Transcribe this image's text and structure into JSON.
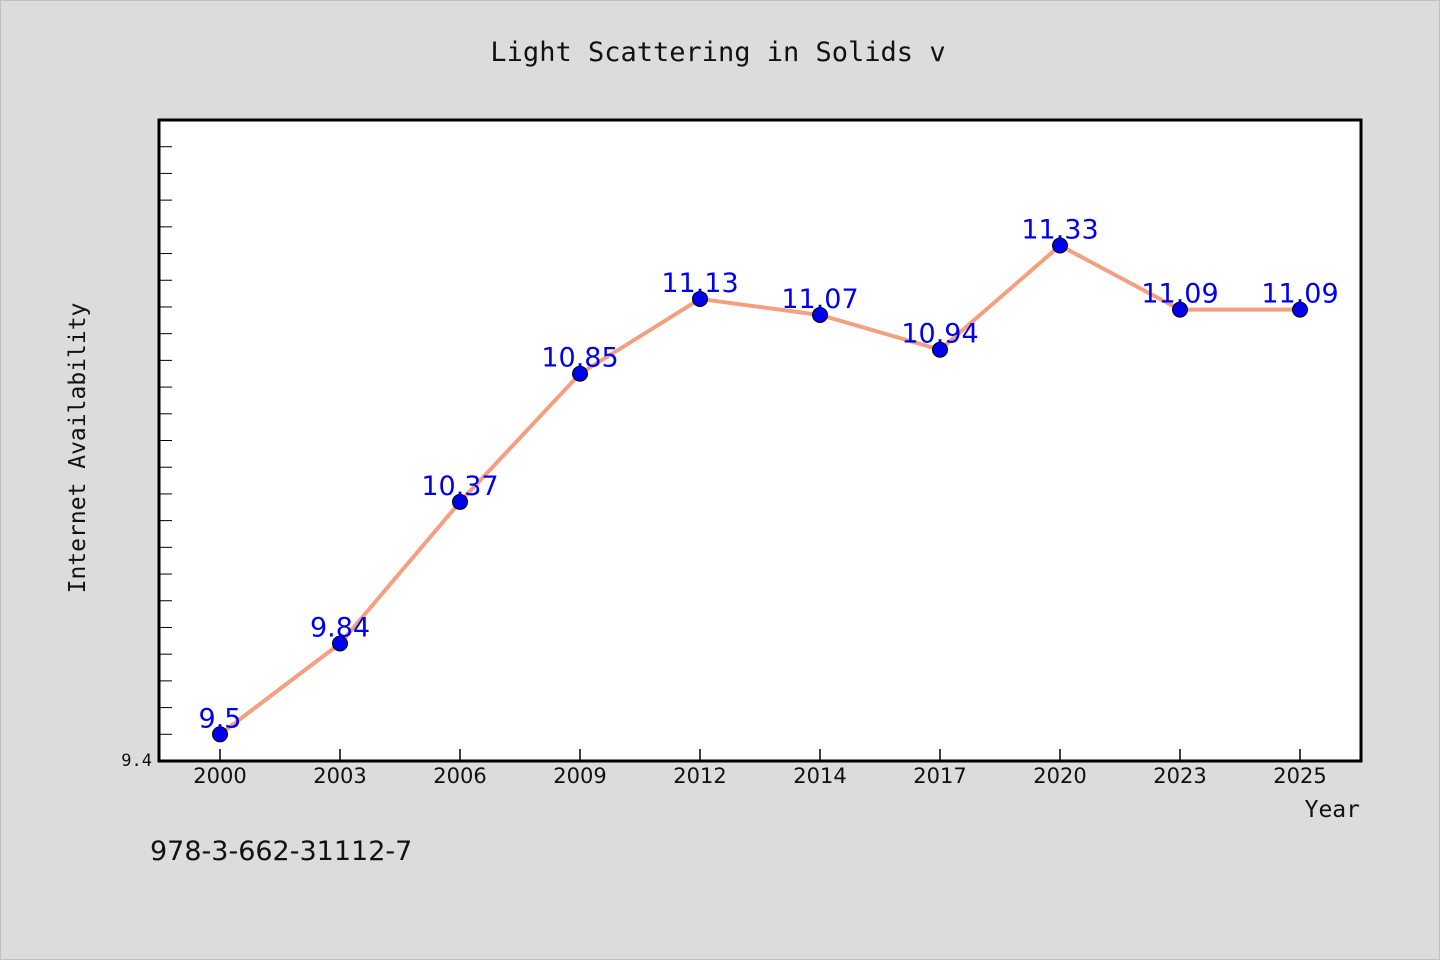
{
  "chart_data": {
    "type": "line",
    "title": "Light Scattering in Solids v",
    "xlabel": "Year",
    "ylabel": "Internet Availability",
    "categories": [
      "2000",
      "2003",
      "2006",
      "2009",
      "2012",
      "2014",
      "2017",
      "2020",
      "2023",
      "2025"
    ],
    "series": [
      {
        "values": [
          9.5,
          9.84,
          10.37,
          10.85,
          11.13,
          11.07,
          10.94,
          11.33,
          11.09,
          11.09
        ]
      }
    ],
    "data_labels": [
      "9.5",
      "9.84",
      "10.37",
      "10.85",
      "11.13",
      "11.07",
      "10.94",
      "11.33",
      "11.09",
      "11.09"
    ],
    "y_tick_labels": [
      "9.4"
    ],
    "ylim": [
      9.4,
      11.8
    ],
    "grid": false,
    "legend": "none",
    "colors": {
      "line": "#f4a080",
      "marker": "#0000ee",
      "data_label": "#0000ee",
      "plot_background": "#ffffff",
      "page_background": "#dcdcdc"
    }
  },
  "footer": {
    "isbn": "978-3-662-31112-7"
  }
}
